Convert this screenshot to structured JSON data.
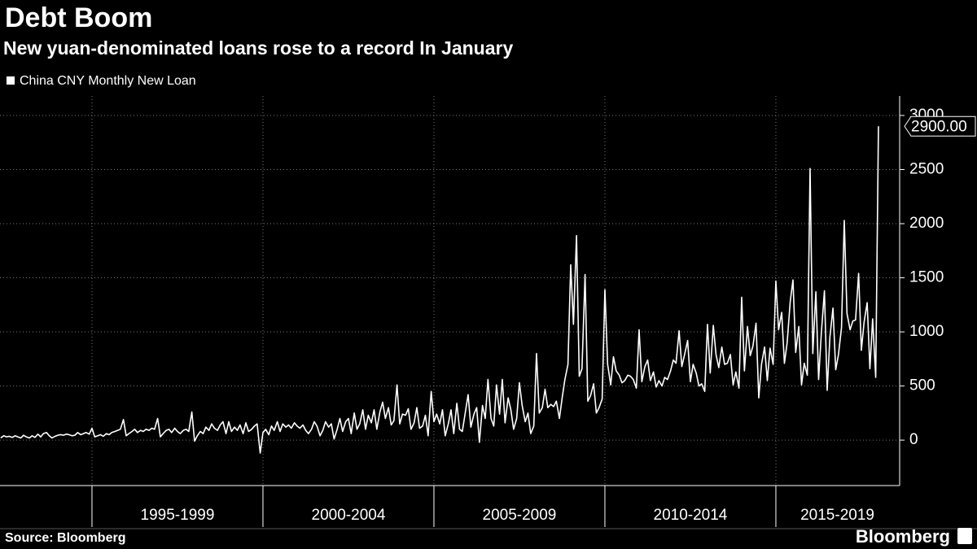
{
  "chart_data": {
    "type": "line",
    "title": "Debt Boom",
    "subtitle": "New yuan-denominated loans rose to a record In January",
    "source": "Source: Bloomberg",
    "brand": "Bloomberg",
    "callout": {
      "value": 2900,
      "label": "2900.00"
    },
    "xlim": [
      1992.31,
      2018.62
    ],
    "ylim": [
      -420,
      3180
    ],
    "yticks": [
      0,
      500,
      1000,
      1500,
      2000,
      2500,
      3000
    ],
    "xgrid": [
      1995,
      2000,
      2005,
      2010,
      2015
    ],
    "xticks": [
      {
        "value": 1997.5,
        "label": "1995-1999"
      },
      {
        "value": 2002.5,
        "label": "2000-2004"
      },
      {
        "value": 2007.5,
        "label": "2005-2009"
      },
      {
        "value": 2012.5,
        "label": "2010-2014"
      },
      {
        "value": 2016.8,
        "label": "2015-2019"
      }
    ],
    "grid": true,
    "x": [
      1992.33,
      1992.42,
      1992.5,
      1992.58,
      1992.67,
      1992.75,
      1992.83,
      1992.92,
      1993,
      1993.08,
      1993.17,
      1993.25,
      1993.33,
      1993.42,
      1993.5,
      1993.58,
      1993.67,
      1993.75,
      1993.83,
      1993.92,
      1994,
      1994.08,
      1994.17,
      1994.25,
      1994.33,
      1994.42,
      1994.5,
      1994.58,
      1994.67,
      1994.75,
      1994.83,
      1994.92,
      1995,
      1995.08,
      1995.17,
      1995.25,
      1995.33,
      1995.42,
      1995.5,
      1995.58,
      1995.67,
      1995.75,
      1995.83,
      1995.92,
      1996,
      1996.08,
      1996.17,
      1996.25,
      1996.33,
      1996.42,
      1996.5,
      1996.58,
      1996.67,
      1996.75,
      1996.83,
      1996.92,
      1997,
      1997.08,
      1997.17,
      1997.25,
      1997.33,
      1997.42,
      1997.5,
      1997.58,
      1997.67,
      1997.75,
      1997.83,
      1997.92,
      1998,
      1998.08,
      1998.17,
      1998.25,
      1998.33,
      1998.42,
      1998.5,
      1998.58,
      1998.67,
      1998.75,
      1998.83,
      1998.92,
      1999,
      1999.08,
      1999.17,
      1999.25,
      1999.33,
      1999.42,
      1999.5,
      1999.58,
      1999.67,
      1999.75,
      1999.83,
      1999.92,
      2000,
      2000.08,
      2000.17,
      2000.25,
      2000.33,
      2000.42,
      2000.5,
      2000.58,
      2000.67,
      2000.75,
      2000.83,
      2000.92,
      2001,
      2001.08,
      2001.17,
      2001.25,
      2001.33,
      2001.42,
      2001.5,
      2001.58,
      2001.67,
      2001.75,
      2001.83,
      2001.92,
      2002,
      2002.08,
      2002.17,
      2002.25,
      2002.33,
      2002.42,
      2002.5,
      2002.58,
      2002.67,
      2002.75,
      2002.83,
      2002.92,
      2003,
      2003.08,
      2003.17,
      2003.25,
      2003.33,
      2003.42,
      2003.5,
      2003.58,
      2003.67,
      2003.75,
      2003.83,
      2003.92,
      2004,
      2004.08,
      2004.17,
      2004.25,
      2004.33,
      2004.42,
      2004.5,
      2004.58,
      2004.67,
      2004.75,
      2004.83,
      2004.92,
      2005,
      2005.08,
      2005.17,
      2005.25,
      2005.33,
      2005.42,
      2005.5,
      2005.58,
      2005.67,
      2005.75,
      2005.83,
      2005.92,
      2006,
      2006.08,
      2006.17,
      2006.25,
      2006.33,
      2006.42,
      2006.5,
      2006.58,
      2006.67,
      2006.75,
      2006.83,
      2006.92,
      2007,
      2007.08,
      2007.17,
      2007.25,
      2007.33,
      2007.42,
      2007.5,
      2007.58,
      2007.67,
      2007.75,
      2007.83,
      2007.92,
      2008,
      2008.08,
      2008.17,
      2008.25,
      2008.33,
      2008.42,
      2008.5,
      2008.58,
      2008.67,
      2008.75,
      2008.83,
      2008.92,
      2009,
      2009.08,
      2009.17,
      2009.25,
      2009.33,
      2009.42,
      2009.5,
      2009.58,
      2009.67,
      2009.75,
      2009.83,
      2009.92,
      2010,
      2010.08,
      2010.17,
      2010.25,
      2010.33,
      2010.42,
      2010.5,
      2010.58,
      2010.67,
      2010.75,
      2010.83,
      2010.92,
      2011,
      2011.08,
      2011.17,
      2011.25,
      2011.33,
      2011.42,
      2011.5,
      2011.58,
      2011.67,
      2011.75,
      2011.83,
      2011.92,
      2012,
      2012.08,
      2012.17,
      2012.25,
      2012.33,
      2012.42,
      2012.5,
      2012.58,
      2012.67,
      2012.75,
      2012.83,
      2012.92,
      2013,
      2013.08,
      2013.17,
      2013.25,
      2013.33,
      2013.42,
      2013.5,
      2013.58,
      2013.67,
      2013.75,
      2013.83,
      2013.92,
      2014,
      2014.08,
      2014.17,
      2014.25,
      2014.33,
      2014.42,
      2014.5,
      2014.58,
      2014.67,
      2014.75,
      2014.83,
      2014.92,
      2015,
      2015.08,
      2015.17,
      2015.25,
      2015.33,
      2015.42,
      2015.5,
      2015.58,
      2015.67,
      2015.75,
      2015.83,
      2015.92,
      2016,
      2016.08,
      2016.17,
      2016.25,
      2016.33,
      2016.42,
      2016.5,
      2016.58,
      2016.67,
      2016.75,
      2016.83,
      2016.92,
      2017,
      2017.08,
      2017.17,
      2017.25,
      2017.33,
      2017.42,
      2017.5,
      2017.58,
      2017.67,
      2017.75,
      2017.83,
      2017.92,
      2018
    ],
    "series": [
      {
        "name": "China CNY Monthly New Loan",
        "color": "#ffffff",
        "values": [
          20,
          40,
          30,
          35,
          25,
          40,
          30,
          20,
          45,
          30,
          20,
          40,
          25,
          55,
          30,
          60,
          70,
          40,
          20,
          35,
          45,
          50,
          45,
          55,
          50,
          40,
          45,
          70,
          50,
          60,
          70,
          55,
          110,
          30,
          40,
          50,
          35,
          60,
          50,
          70,
          80,
          90,
          100,
          190,
          40,
          60,
          80,
          100,
          70,
          90,
          80,
          100,
          90,
          110,
          100,
          200,
          30,
          60,
          90,
          100,
          70,
          110,
          80,
          60,
          90,
          100,
          80,
          260,
          -10,
          40,
          80,
          60,
          120,
          90,
          150,
          110,
          90,
          140,
          170,
          60,
          170,
          80,
          120,
          90,
          140,
          60,
          160,
          80,
          100,
          130,
          150,
          -120,
          70,
          100,
          50,
          130,
          90,
          170,
          80,
          150,
          120,
          140,
          110,
          160,
          130,
          110,
          140,
          90,
          60,
          100,
          170,
          130,
          40,
          90,
          170,
          120,
          150,
          10,
          100,
          200,
          80,
          170,
          200,
          60,
          250,
          100,
          150,
          280,
          100,
          230,
          160,
          280,
          100,
          260,
          350,
          200,
          300,
          140,
          180,
          510,
          150,
          240,
          230,
          290,
          100,
          160,
          300,
          110,
          130,
          230,
          40,
          450,
          170,
          240,
          150,
          280,
          40,
          150,
          280,
          60,
          340,
          100,
          80,
          260,
          420,
          120,
          240,
          300,
          -20,
          320,
          200,
          560,
          200,
          130,
          510,
          240,
          560,
          160,
          390,
          280,
          100,
          200,
          530,
          320,
          170,
          250,
          60,
          130,
          800,
          250,
          300,
          470,
          300,
          330,
          310,
          360,
          200,
          390,
          560,
          700,
          1620,
          1070,
          1890,
          590,
          660,
          1530,
          360,
          410,
          520,
          250,
          300,
          380,
          1390,
          700,
          510,
          770,
          640,
          600,
          530,
          550,
          600,
          590,
          560,
          480,
          1020,
          540,
          680,
          740,
          550,
          630,
          490,
          550,
          500,
          580,
          560,
          640,
          740,
          710,
          1010,
          680,
          790,
          920,
          540,
          700,
          620,
          500,
          520,
          450,
          1070,
          620,
          1060,
          790,
          670,
          860,
          700,
          710,
          790,
          510,
          630,
          480,
          1320,
          640,
          1050,
          780,
          870,
          1080,
          390,
          700,
          860,
          550,
          850,
          700,
          1470,
          1020,
          1180,
          710,
          900,
          1280,
          1480,
          810,
          1050,
          510,
          710,
          600,
          2510,
          800,
          1370,
          560,
          990,
          1380,
          460,
          950,
          1220,
          650,
          790,
          1040,
          2030,
          1170,
          1020,
          1100,
          1110,
          1540,
          830,
          1090,
          1270,
          660,
          1120,
          580,
          2900
        ]
      }
    ]
  }
}
